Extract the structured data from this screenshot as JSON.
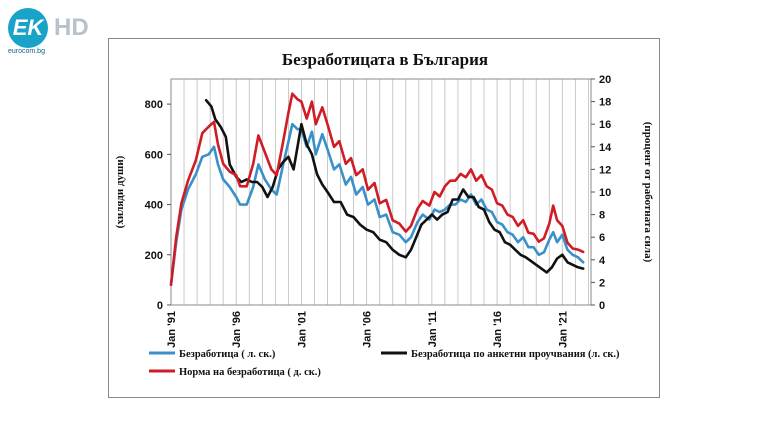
{
  "logo": {
    "mark": "EK",
    "hd": "HD",
    "url": "eurocom.bg"
  },
  "chart_data": {
    "type": "line",
    "title": "Безработицата в България",
    "ylabel_left": "(хиляди души)",
    "ylabel_right": "(процент от работната сила)",
    "ylim_left": [
      0,
      900
    ],
    "yticks_left": [
      0,
      200,
      400,
      600,
      800
    ],
    "ylim_right": [
      0,
      20
    ],
    "yticks_right": [
      0,
      2,
      4,
      6,
      8,
      10,
      12,
      14,
      16,
      18,
      20
    ],
    "xlim": [
      1991,
      2023.2
    ],
    "x_ticks": [
      {
        "x": 1991,
        "label": "Jan '91"
      },
      {
        "x": 1996,
        "label": "Jan '96"
      },
      {
        "x": 2001,
        "label": "Jan '01"
      },
      {
        "x": 2006,
        "label": "Jan '06"
      },
      {
        "x": 2011,
        "label": "Jan '11"
      },
      {
        "x": 2016,
        "label": "Jan '16"
      },
      {
        "x": 2021,
        "label": "Jan '21"
      }
    ],
    "series": [
      {
        "name": "Безработица ( л. ск.)",
        "axis": "left",
        "color": "#3a90c8",
        "points": [
          [
            1991.0,
            80
          ],
          [
            1991.4,
            250
          ],
          [
            1991.8,
            380
          ],
          [
            1992.3,
            460
          ],
          [
            1992.9,
            520
          ],
          [
            1993.4,
            590
          ],
          [
            1993.9,
            600
          ],
          [
            1994.3,
            630
          ],
          [
            1994.6,
            560
          ],
          [
            1995.0,
            500
          ],
          [
            1995.5,
            470
          ],
          [
            1996.0,
            430
          ],
          [
            1996.3,
            400
          ],
          [
            1996.8,
            400
          ],
          [
            1997.3,
            470
          ],
          [
            1997.7,
            560
          ],
          [
            1998.2,
            500
          ],
          [
            1998.7,
            460
          ],
          [
            1999.1,
            440
          ],
          [
            1999.6,
            560
          ],
          [
            2000.0,
            650
          ],
          [
            2000.3,
            720
          ],
          [
            2000.7,
            700
          ],
          [
            2001.0,
            700
          ],
          [
            2001.4,
            630
          ],
          [
            2001.8,
            690
          ],
          [
            2002.1,
            600
          ],
          [
            2002.6,
            680
          ],
          [
            2003.0,
            620
          ],
          [
            2003.5,
            540
          ],
          [
            2003.9,
            560
          ],
          [
            2004.4,
            480
          ],
          [
            2004.8,
            510
          ],
          [
            2005.2,
            440
          ],
          [
            2005.7,
            470
          ],
          [
            2006.1,
            400
          ],
          [
            2006.6,
            420
          ],
          [
            2007.0,
            350
          ],
          [
            2007.5,
            360
          ],
          [
            2008.0,
            290
          ],
          [
            2008.5,
            280
          ],
          [
            2009.0,
            250
          ],
          [
            2009.4,
            270
          ],
          [
            2009.9,
            330
          ],
          [
            2010.3,
            360
          ],
          [
            2010.8,
            340
          ],
          [
            2011.2,
            380
          ],
          [
            2011.6,
            370
          ],
          [
            2012.0,
            380
          ],
          [
            2012.4,
            400
          ],
          [
            2012.8,
            400
          ],
          [
            2013.2,
            420
          ],
          [
            2013.6,
            410
          ],
          [
            2014.0,
            440
          ],
          [
            2014.4,
            400
          ],
          [
            2014.8,
            420
          ],
          [
            2015.2,
            380
          ],
          [
            2015.6,
            370
          ],
          [
            2016.0,
            330
          ],
          [
            2016.4,
            320
          ],
          [
            2016.8,
            290
          ],
          [
            2017.2,
            280
          ],
          [
            2017.6,
            250
          ],
          [
            2018.0,
            270
          ],
          [
            2018.4,
            230
          ],
          [
            2018.8,
            230
          ],
          [
            2019.2,
            200
          ],
          [
            2019.6,
            210
          ],
          [
            2020.0,
            260
          ],
          [
            2020.3,
            290
          ],
          [
            2020.6,
            250
          ],
          [
            2021.0,
            280
          ],
          [
            2021.4,
            220
          ],
          [
            2021.8,
            200
          ],
          [
            2022.2,
            190
          ],
          [
            2022.6,
            170
          ]
        ]
      },
      {
        "name": "Безработица по анкетни проучвания (л. ск.)",
        "axis": "left",
        "color": "#111111",
        "points": [
          [
            1993.7,
            815
          ],
          [
            1994.1,
            790
          ],
          [
            1994.4,
            740
          ],
          [
            1994.8,
            710
          ],
          [
            1995.2,
            670
          ],
          [
            1995.5,
            560
          ],
          [
            1996.0,
            510
          ],
          [
            1996.4,
            490
          ],
          [
            1996.8,
            500
          ],
          [
            1997.2,
            490
          ],
          [
            1997.6,
            490
          ],
          [
            1998.0,
            470
          ],
          [
            1998.4,
            430
          ],
          [
            1998.8,
            470
          ],
          [
            1999.2,
            540
          ],
          [
            1999.6,
            570
          ],
          [
            2000.0,
            590
          ],
          [
            2000.4,
            540
          ],
          [
            2000.8,
            660
          ],
          [
            2001.0,
            720
          ],
          [
            2001.4,
            640
          ],
          [
            2001.8,
            600
          ],
          [
            2002.2,
            520
          ],
          [
            2002.6,
            480
          ],
          [
            2003.0,
            450
          ],
          [
            2003.5,
            410
          ],
          [
            2004.0,
            410
          ],
          [
            2004.5,
            360
          ],
          [
            2005.0,
            350
          ],
          [
            2005.5,
            320
          ],
          [
            2006.0,
            300
          ],
          [
            2006.5,
            290
          ],
          [
            2007.0,
            260
          ],
          [
            2007.5,
            250
          ],
          [
            2008.0,
            220
          ],
          [
            2008.5,
            200
          ],
          [
            2009.0,
            190
          ],
          [
            2009.4,
            220
          ],
          [
            2009.8,
            270
          ],
          [
            2010.2,
            320
          ],
          [
            2010.6,
            340
          ],
          [
            2011.0,
            360
          ],
          [
            2011.4,
            340
          ],
          [
            2011.8,
            360
          ],
          [
            2012.2,
            370
          ],
          [
            2012.6,
            420
          ],
          [
            2013.0,
            420
          ],
          [
            2013.4,
            460
          ],
          [
            2013.8,
            430
          ],
          [
            2014.2,
            430
          ],
          [
            2014.6,
            390
          ],
          [
            2015.0,
            380
          ],
          [
            2015.4,
            330
          ],
          [
            2015.8,
            300
          ],
          [
            2016.2,
            290
          ],
          [
            2016.6,
            250
          ],
          [
            2017.0,
            240
          ],
          [
            2017.4,
            220
          ],
          [
            2017.8,
            200
          ],
          [
            2018.2,
            190
          ],
          [
            2018.6,
            175
          ],
          [
            2019.0,
            160
          ],
          [
            2019.4,
            145
          ],
          [
            2019.8,
            130
          ],
          [
            2020.2,
            150
          ],
          [
            2020.6,
            185
          ],
          [
            2021.0,
            200
          ],
          [
            2021.4,
            170
          ],
          [
            2021.8,
            160
          ],
          [
            2022.2,
            150
          ],
          [
            2022.6,
            145
          ]
        ]
      },
      {
        "name": "Норма на безработица ( д. ск.)",
        "axis": "right",
        "color": "#d01c24",
        "points": [
          [
            1991.0,
            1.8
          ],
          [
            1991.4,
            6.0
          ],
          [
            1991.8,
            9.0
          ],
          [
            1992.3,
            11.0
          ],
          [
            1992.9,
            12.8
          ],
          [
            1993.4,
            15.2
          ],
          [
            1993.9,
            15.8
          ],
          [
            1994.3,
            16.2
          ],
          [
            1994.6,
            14.2
          ],
          [
            1995.0,
            12.5
          ],
          [
            1995.5,
            11.8
          ],
          [
            1996.0,
            11.5
          ],
          [
            1996.3,
            10.5
          ],
          [
            1996.8,
            10.5
          ],
          [
            1997.3,
            12.5
          ],
          [
            1997.7,
            15.0
          ],
          [
            1998.2,
            13.5
          ],
          [
            1998.7,
            12.0
          ],
          [
            1999.1,
            11.5
          ],
          [
            1999.6,
            14.5
          ],
          [
            2000.0,
            17.0
          ],
          [
            2000.3,
            18.7
          ],
          [
            2000.7,
            18.2
          ],
          [
            2001.0,
            18.0
          ],
          [
            2001.4,
            16.5
          ],
          [
            2001.8,
            18.0
          ],
          [
            2002.1,
            16.0
          ],
          [
            2002.6,
            17.5
          ],
          [
            2003.0,
            16.0
          ],
          [
            2003.5,
            14.0
          ],
          [
            2003.9,
            14.5
          ],
          [
            2004.4,
            12.5
          ],
          [
            2004.8,
            13.0
          ],
          [
            2005.2,
            11.5
          ],
          [
            2005.7,
            12.0
          ],
          [
            2006.1,
            10.2
          ],
          [
            2006.6,
            10.8
          ],
          [
            2007.0,
            9.0
          ],
          [
            2007.5,
            9.3
          ],
          [
            2008.0,
            7.5
          ],
          [
            2008.5,
            7.2
          ],
          [
            2009.0,
            6.5
          ],
          [
            2009.4,
            7.0
          ],
          [
            2009.9,
            8.5
          ],
          [
            2010.3,
            9.2
          ],
          [
            2010.8,
            8.8
          ],
          [
            2011.2,
            10.0
          ],
          [
            2011.6,
            9.6
          ],
          [
            2012.0,
            10.5
          ],
          [
            2012.4,
            11.0
          ],
          [
            2012.8,
            11.0
          ],
          [
            2013.2,
            11.6
          ],
          [
            2013.6,
            11.3
          ],
          [
            2014.0,
            12.0
          ],
          [
            2014.4,
            11.0
          ],
          [
            2014.8,
            11.5
          ],
          [
            2015.2,
            10.5
          ],
          [
            2015.6,
            10.2
          ],
          [
            2016.0,
            9.0
          ],
          [
            2016.4,
            8.8
          ],
          [
            2016.8,
            8.0
          ],
          [
            2017.2,
            7.8
          ],
          [
            2017.6,
            7.0
          ],
          [
            2018.0,
            7.5
          ],
          [
            2018.4,
            6.4
          ],
          [
            2018.8,
            6.3
          ],
          [
            2019.2,
            5.6
          ],
          [
            2019.6,
            5.9
          ],
          [
            2020.0,
            7.2
          ],
          [
            2020.3,
            8.8
          ],
          [
            2020.6,
            7.5
          ],
          [
            2021.0,
            7.0
          ],
          [
            2021.4,
            5.5
          ],
          [
            2021.8,
            5.0
          ],
          [
            2022.2,
            4.9
          ],
          [
            2022.6,
            4.7
          ]
        ]
      }
    ]
  }
}
